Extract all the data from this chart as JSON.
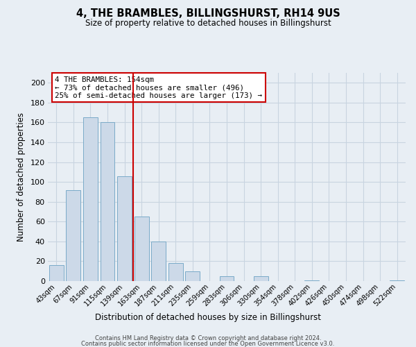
{
  "title": "4, THE BRAMBLES, BILLINGSHURST, RH14 9US",
  "subtitle": "Size of property relative to detached houses in Billingshurst",
  "xlabel": "Distribution of detached houses by size in Billingshurst",
  "ylabel": "Number of detached properties",
  "bin_labels": [
    "43sqm",
    "67sqm",
    "91sqm",
    "115sqm",
    "139sqm",
    "163sqm",
    "187sqm",
    "211sqm",
    "235sqm",
    "259sqm",
    "283sqm",
    "306sqm",
    "330sqm",
    "354sqm",
    "378sqm",
    "402sqm",
    "426sqm",
    "450sqm",
    "474sqm",
    "498sqm",
    "522sqm"
  ],
  "bin_values": [
    16,
    92,
    165,
    160,
    106,
    65,
    40,
    18,
    10,
    0,
    5,
    0,
    5,
    0,
    0,
    1,
    0,
    0,
    0,
    0,
    1
  ],
  "bar_color": "#ccd9e8",
  "bar_edge_color": "#7aaac8",
  "marker_bin_index": 5,
  "marker_color": "#cc0000",
  "ylim": [
    0,
    210
  ],
  "yticks": [
    0,
    20,
    40,
    60,
    80,
    100,
    120,
    140,
    160,
    180,
    200
  ],
  "annotation_title": "4 THE BRAMBLES: 154sqm",
  "annotation_line1": "← 73% of detached houses are smaller (496)",
  "annotation_line2": "25% of semi-detached houses are larger (173) →",
  "annotation_box_color": "#ffffff",
  "annotation_box_edge": "#cc0000",
  "footer_line1": "Contains HM Land Registry data © Crown copyright and database right 2024.",
  "footer_line2": "Contains public sector information licensed under the Open Government Licence v3.0.",
  "grid_color": "#c8d4e0",
  "fig_background": "#e8eef4",
  "plot_background": "#e8eef4"
}
